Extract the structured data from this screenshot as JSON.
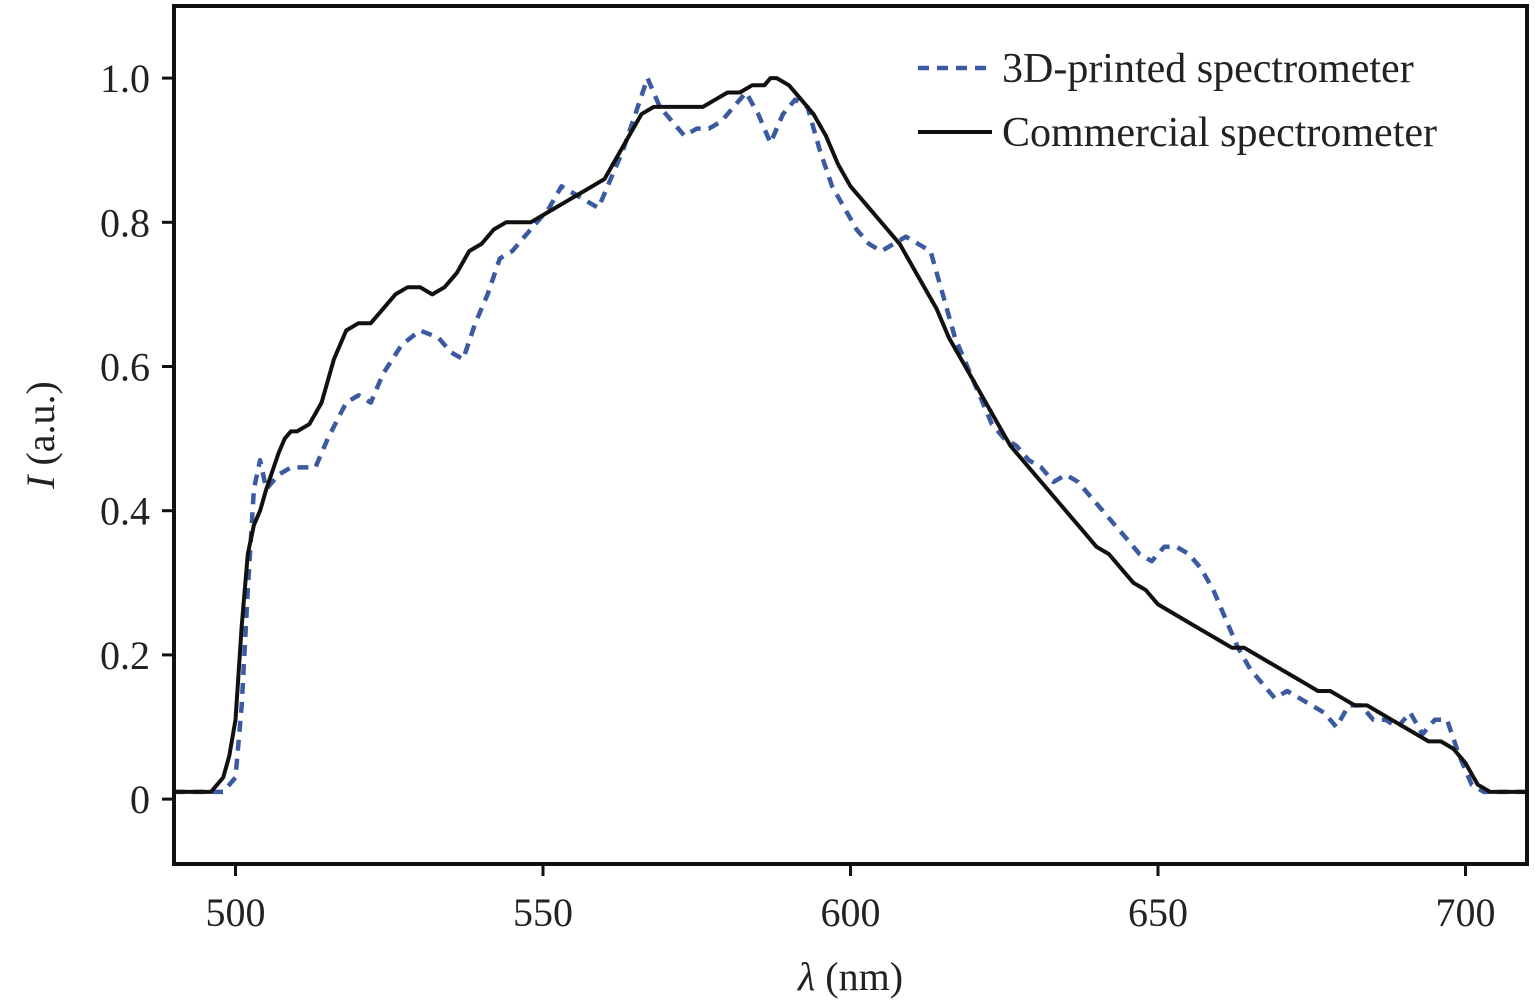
{
  "chart_data": {
    "type": "line",
    "xlabel_symbol": "λ",
    "xlabel_unit": "(nm)",
    "ylabel_symbol": "I",
    "ylabel_unit": "(a.u.)",
    "xlim": [
      490,
      710
    ],
    "ylim": [
      -0.09,
      1.1
    ],
    "x_ticks": [
      500,
      550,
      600,
      650,
      700
    ],
    "x_tick_labels": [
      "500",
      "550",
      "600",
      "650",
      "700"
    ],
    "y_ticks": [
      0,
      0.2,
      0.4,
      0.6,
      0.8,
      1.0
    ],
    "y_tick_labels": [
      "0",
      "0.2",
      "0.4",
      "0.6",
      "0.8",
      "1.0"
    ],
    "grid": false,
    "legend_position": "top-right",
    "series": [
      {
        "name": "3D-printed spectrometer",
        "style": "dashed",
        "color": "#3b5aa0",
        "x": [
          490,
          493,
          496,
          498,
          500,
          501,
          502,
          503,
          504,
          505,
          507,
          509,
          511,
          513,
          515,
          518,
          520,
          522,
          524,
          527,
          530,
          533,
          535,
          537,
          539,
          541,
          543,
          545,
          547,
          549,
          551,
          553,
          555,
          557,
          559,
          561,
          563,
          565,
          567,
          569,
          571,
          573,
          575,
          577,
          579,
          581,
          583,
          585,
          587,
          589,
          591,
          593,
          595,
          597,
          599,
          601,
          603,
          605,
          607,
          609,
          611,
          613,
          615,
          617,
          619,
          621,
          623,
          625,
          627,
          629,
          631,
          633,
          635,
          637,
          639,
          641,
          643,
          645,
          647,
          649,
          651,
          653,
          655,
          657,
          659,
          661,
          663,
          665,
          667,
          669,
          671,
          673,
          675,
          677,
          679,
          681,
          683,
          685,
          687,
          689,
          691,
          693,
          695,
          697,
          699,
          701,
          703,
          705,
          707,
          710
        ],
        "y": [
          0.01,
          0.01,
          0.01,
          0.01,
          0.03,
          0.13,
          0.29,
          0.43,
          0.47,
          0.43,
          0.45,
          0.46,
          0.46,
          0.46,
          0.5,
          0.55,
          0.56,
          0.55,
          0.59,
          0.63,
          0.65,
          0.64,
          0.62,
          0.61,
          0.66,
          0.7,
          0.75,
          0.76,
          0.78,
          0.8,
          0.82,
          0.85,
          0.84,
          0.83,
          0.82,
          0.86,
          0.9,
          0.95,
          1.0,
          0.96,
          0.94,
          0.92,
          0.93,
          0.93,
          0.94,
          0.96,
          0.98,
          0.95,
          0.91,
          0.95,
          0.97,
          0.96,
          0.9,
          0.85,
          0.82,
          0.79,
          0.77,
          0.76,
          0.77,
          0.78,
          0.77,
          0.76,
          0.7,
          0.64,
          0.6,
          0.56,
          0.52,
          0.5,
          0.49,
          0.47,
          0.46,
          0.44,
          0.45,
          0.44,
          0.42,
          0.4,
          0.38,
          0.36,
          0.34,
          0.33,
          0.35,
          0.35,
          0.34,
          0.32,
          0.29,
          0.25,
          0.21,
          0.18,
          0.16,
          0.14,
          0.15,
          0.14,
          0.13,
          0.12,
          0.1,
          0.13,
          0.13,
          0.11,
          0.11,
          0.1,
          0.12,
          0.09,
          0.11,
          0.11,
          0.06,
          0.02,
          0.01,
          0.01,
          0.01,
          0.01
        ]
      },
      {
        "name": "Commercial spectrometer",
        "style": "solid",
        "color": "#111111",
        "x": [
          490,
          492,
          494,
          496,
          497,
          498,
          499,
          500,
          501,
          502,
          503,
          504,
          505,
          507,
          508,
          509,
          510,
          512,
          514,
          516,
          518,
          520,
          522,
          524,
          526,
          528,
          530,
          532,
          534,
          536,
          538,
          540,
          542,
          544,
          546,
          548,
          550,
          552,
          554,
          556,
          558,
          560,
          562,
          564,
          566,
          568,
          570,
          572,
          574,
          576,
          578,
          580,
          582,
          584,
          586,
          587,
          588,
          590,
          592,
          594,
          596,
          598,
          600,
          602,
          604,
          606,
          608,
          610,
          612,
          614,
          616,
          618,
          620,
          622,
          624,
          626,
          628,
          630,
          632,
          634,
          636,
          638,
          640,
          642,
          644,
          646,
          648,
          650,
          652,
          654,
          656,
          658,
          660,
          662,
          664,
          666,
          668,
          670,
          672,
          674,
          676,
          678,
          680,
          682,
          684,
          686,
          688,
          690,
          692,
          694,
          696,
          698,
          700,
          702,
          704,
          706,
          708,
          710
        ],
        "y": [
          0.01,
          0.01,
          0.01,
          0.01,
          0.02,
          0.03,
          0.06,
          0.11,
          0.24,
          0.34,
          0.38,
          0.4,
          0.43,
          0.48,
          0.5,
          0.51,
          0.51,
          0.52,
          0.55,
          0.61,
          0.65,
          0.66,
          0.66,
          0.68,
          0.7,
          0.71,
          0.71,
          0.7,
          0.71,
          0.73,
          0.76,
          0.77,
          0.79,
          0.8,
          0.8,
          0.8,
          0.81,
          0.82,
          0.83,
          0.84,
          0.85,
          0.86,
          0.89,
          0.92,
          0.95,
          0.96,
          0.96,
          0.96,
          0.96,
          0.96,
          0.97,
          0.98,
          0.98,
          0.99,
          0.99,
          1.0,
          1.0,
          0.99,
          0.97,
          0.95,
          0.92,
          0.88,
          0.85,
          0.83,
          0.81,
          0.79,
          0.77,
          0.74,
          0.71,
          0.68,
          0.64,
          0.61,
          0.58,
          0.55,
          0.52,
          0.49,
          0.47,
          0.45,
          0.43,
          0.41,
          0.39,
          0.37,
          0.35,
          0.34,
          0.32,
          0.3,
          0.29,
          0.27,
          0.26,
          0.25,
          0.24,
          0.23,
          0.22,
          0.21,
          0.21,
          0.2,
          0.19,
          0.18,
          0.17,
          0.16,
          0.15,
          0.15,
          0.14,
          0.13,
          0.13,
          0.12,
          0.11,
          0.1,
          0.09,
          0.08,
          0.08,
          0.07,
          0.05,
          0.02,
          0.01,
          0.01,
          0.01,
          0.01
        ]
      }
    ]
  }
}
